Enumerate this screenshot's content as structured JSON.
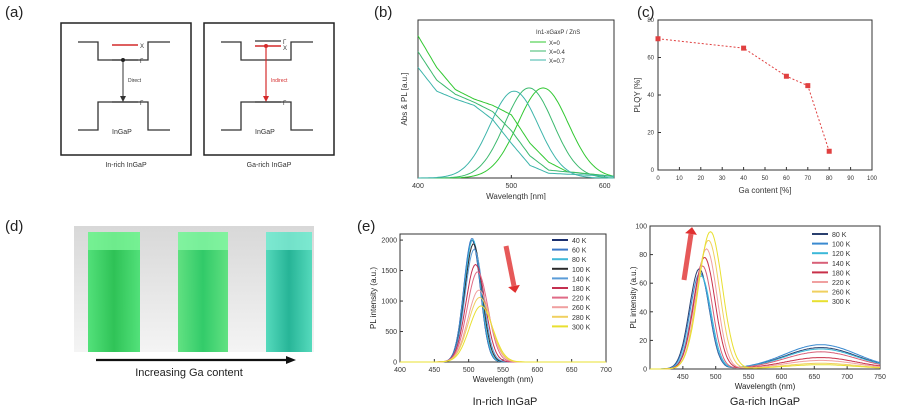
{
  "panels": {
    "a": {
      "label": "(a)",
      "left": {
        "caption": "In-rich InGaP",
        "material": "InGaP",
        "transition": "Direct",
        "x_label": "X",
        "g_label": "Γ"
      },
      "right": {
        "caption": "Ga-rich InGaP",
        "material": "InGaP",
        "transition": "Indirect",
        "x_label": "X",
        "g_label": "Γ"
      }
    },
    "b": {
      "label": "(b)"
    },
    "c": {
      "label": "(c)"
    },
    "d": {
      "label": "(d)",
      "caption": "Increasing Ga content"
    },
    "e": {
      "label": "(e)",
      "left_caption": "In-rich InGaP",
      "right_caption": "Ga-rich InGaP"
    }
  },
  "colors": {
    "red_marker": "#e04040",
    "cuvette_green": "#3fd86a",
    "cuvette_teal": "#2cc6a2"
  },
  "chart_data": [
    {
      "id": "b",
      "type": "line",
      "title": "",
      "xlabel": "Wavelength [nm]",
      "ylabel": "Abs & PL [a.u.]",
      "xlim": [
        400,
        610
      ],
      "xticks": [
        400,
        500,
        600
      ],
      "legend_title": "In1-xGaxP / ZnS",
      "legend": [
        "X=0",
        "X=0.4",
        "X=0.7"
      ],
      "series": [
        {
          "name": "X=0",
          "color": "#32c832",
          "abs": [
            [
              400,
              0.9
            ],
            [
              420,
              0.7
            ],
            [
              440,
              0.56
            ],
            [
              460,
              0.5
            ],
            [
              480,
              0.46
            ],
            [
              500,
              0.4
            ],
            [
              520,
              0.22
            ],
            [
              540,
              0.1
            ],
            [
              560,
              0.04
            ],
            [
              610,
              0.01
            ]
          ],
          "pl_peak": 534,
          "pl_height": 0.57,
          "pl_width": 27
        },
        {
          "name": "X=0.4",
          "color": "#3cb96e",
          "abs": [
            [
              400,
              0.8
            ],
            [
              420,
              0.62
            ],
            [
              440,
              0.53
            ],
            [
              460,
              0.48
            ],
            [
              480,
              0.42
            ],
            [
              500,
              0.3
            ],
            [
              520,
              0.14
            ],
            [
              540,
              0.05
            ],
            [
              610,
              0.01
            ]
          ],
          "pl_peak": 519,
          "pl_height": 0.57,
          "pl_width": 26
        },
        {
          "name": "X=0.7",
          "color": "#3cb4aa",
          "abs": [
            [
              400,
              0.7
            ],
            [
              420,
              0.55
            ],
            [
              440,
              0.5
            ],
            [
              460,
              0.46
            ],
            [
              480,
              0.37
            ],
            [
              500,
              0.22
            ],
            [
              520,
              0.08
            ],
            [
              540,
              0.03
            ],
            [
              610,
              0.01
            ]
          ],
          "pl_peak": 503,
          "pl_height": 0.55,
          "pl_width": 26
        }
      ]
    },
    {
      "id": "c",
      "type": "scatter",
      "xlabel": "Ga content [%]",
      "ylabel": "PLQY [%]",
      "xlim": [
        0,
        100
      ],
      "ylim": [
        0,
        80
      ],
      "xticks": [
        0,
        10,
        20,
        30,
        40,
        50,
        60,
        70,
        80,
        90,
        100
      ],
      "yticks": [
        0,
        20,
        40,
        60,
        80
      ],
      "points": [
        {
          "x": 0,
          "y": 70
        },
        {
          "x": 40,
          "y": 65
        },
        {
          "x": 60,
          "y": 50
        },
        {
          "x": 70,
          "y": 45
        },
        {
          "x": 80,
          "y": 10
        }
      ]
    },
    {
      "id": "e1",
      "type": "line",
      "xlabel": "Wavelength (nm)",
      "ylabel": "PL intensity (a.u.)",
      "xlim": [
        400,
        700
      ],
      "ylim": [
        0,
        2100
      ],
      "xticks": [
        400,
        450,
        500,
        550,
        600,
        650,
        700
      ],
      "yticks": [
        0,
        500,
        1000,
        1500,
        2000
      ],
      "legend": [
        "40 K",
        "60 K",
        "80 K",
        "100 K",
        "140 K",
        "180 K",
        "220 K",
        "260 K",
        "280 K",
        "300 K"
      ],
      "colors": [
        "#1b2f6e",
        "#3b78c8",
        "#40b8d8",
        "#2a2a2a",
        "#5a9cd8",
        "#c43050",
        "#e06a86",
        "#f0a0a0",
        "#f0d060",
        "#e8e030"
      ],
      "series": [
        {
          "name": "40 K",
          "peak": 505,
          "height": 2000,
          "width": 12
        },
        {
          "name": "60 K",
          "peak": 505,
          "height": 2030,
          "width": 12
        },
        {
          "name": "80 K",
          "peak": 506,
          "height": 2010,
          "width": 12
        },
        {
          "name": "100 K",
          "peak": 507,
          "height": 1940,
          "width": 12.5
        },
        {
          "name": "140 K",
          "peak": 508,
          "height": 1850,
          "width": 13
        },
        {
          "name": "180 K",
          "peak": 510,
          "height": 1600,
          "width": 14
        },
        {
          "name": "220 K",
          "peak": 513,
          "height": 1480,
          "width": 15
        },
        {
          "name": "260 K",
          "peak": 515,
          "height": 1180,
          "width": 16
        },
        {
          "name": "280 K",
          "peak": 516,
          "height": 1060,
          "width": 16.5
        },
        {
          "name": "300 K",
          "peak": 518,
          "height": 920,
          "width": 17
        }
      ]
    },
    {
      "id": "e2",
      "type": "line",
      "xlabel": "Wavelength (nm)",
      "ylabel": "PL intensity (a.u.)",
      "xlim": [
        400,
        750
      ],
      "ylim": [
        0,
        100
      ],
      "xticks": [
        450,
        500,
        550,
        600,
        650,
        700,
        750
      ],
      "yticks": [
        0,
        20,
        40,
        60,
        80,
        100
      ],
      "legend": [
        "80 K",
        "100 K",
        "120 K",
        "140 K",
        "180 K",
        "220 K",
        "260 K",
        "300 K"
      ],
      "colors": [
        "#2a3f6e",
        "#3a8ad0",
        "#3bb8d8",
        "#d86078",
        "#c83048",
        "#f0a0a0",
        "#f0d060",
        "#e8e030"
      ],
      "series": [
        {
          "name": "80 K",
          "peak": 475,
          "height": 70,
          "width": 15,
          "tail": 15
        },
        {
          "name": "100 K",
          "peak": 476,
          "height": 67,
          "width": 15,
          "tail": 17
        },
        {
          "name": "120 K",
          "peak": 478,
          "height": 65,
          "width": 15,
          "tail": 14
        },
        {
          "name": "140 K",
          "peak": 480,
          "height": 72,
          "width": 15,
          "tail": 12
        },
        {
          "name": "180 K",
          "peak": 483,
          "height": 78,
          "width": 16,
          "tail": 8
        },
        {
          "name": "220 K",
          "peak": 486,
          "height": 84,
          "width": 16,
          "tail": 6
        },
        {
          "name": "260 K",
          "peak": 489,
          "height": 90,
          "width": 17,
          "tail": 4
        },
        {
          "name": "300 K",
          "peak": 492,
          "height": 96,
          "width": 18,
          "tail": 3
        }
      ]
    }
  ]
}
